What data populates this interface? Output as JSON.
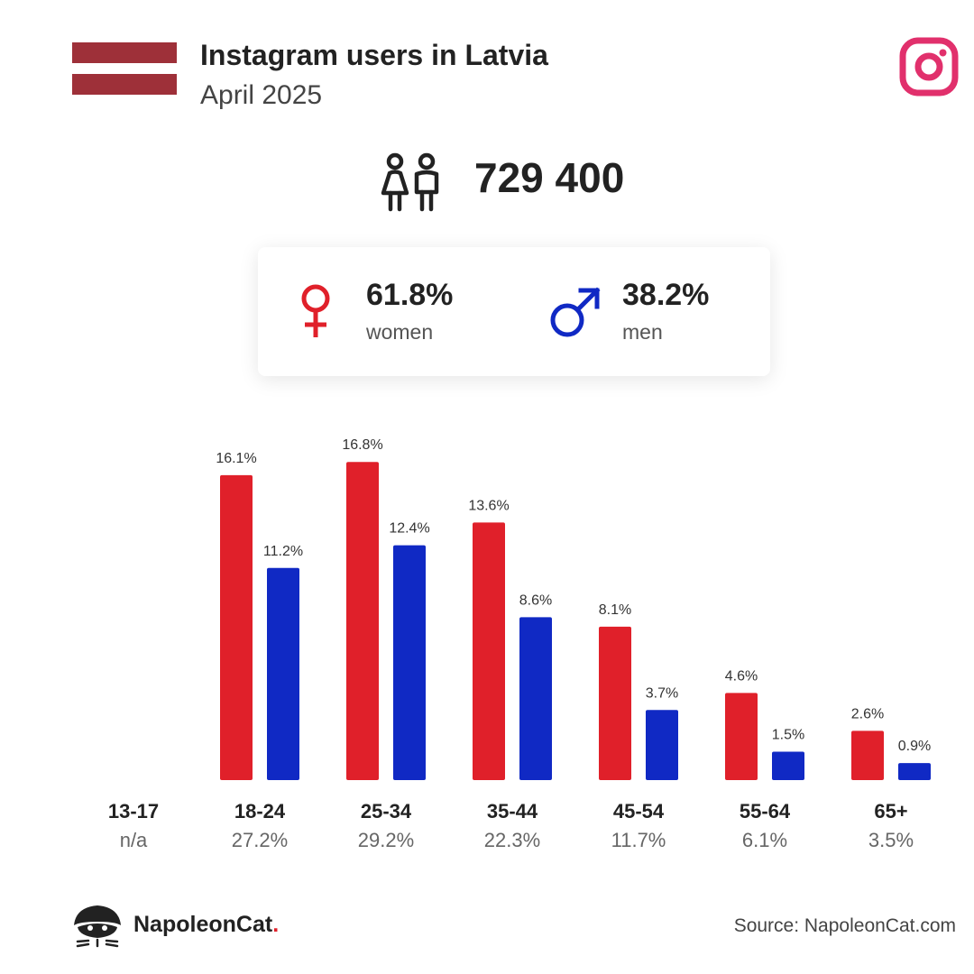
{
  "header": {
    "title": "Instagram users in Latvia",
    "subtitle": "April 2025",
    "flag_colors": {
      "top": "#9e3039",
      "middle": "#ffffff",
      "bottom": "#9e3039"
    },
    "platform_icon": "instagram-icon",
    "platform_color": "#e1306c"
  },
  "total": {
    "icon": "people-icon",
    "value": "729 400"
  },
  "gender": {
    "female": {
      "icon": "female-symbol-icon",
      "percent": "61.8%",
      "label": "women",
      "color": "#e0202a"
    },
    "male": {
      "icon": "male-symbol-icon",
      "percent": "38.2%",
      "label": "men",
      "color": "#1029c4"
    }
  },
  "chart_data": {
    "type": "bar",
    "categories": [
      "13-17",
      "18-24",
      "25-34",
      "35-44",
      "45-54",
      "55-64",
      "65+"
    ],
    "category_totals": [
      "n/a",
      "27.2%",
      "29.2%",
      "22.3%",
      "11.7%",
      "6.1%",
      "3.5%"
    ],
    "series": [
      {
        "name": "women",
        "color": "#e0202a",
        "values": [
          null,
          16.1,
          16.8,
          13.6,
          8.1,
          4.6,
          2.6
        ],
        "labels": [
          "",
          "16.1%",
          "16.8%",
          "13.6%",
          "8.1%",
          "4.6%",
          "2.6%"
        ]
      },
      {
        "name": "men",
        "color": "#1029c4",
        "values": [
          null,
          11.2,
          12.4,
          8.6,
          3.7,
          1.5,
          0.9
        ],
        "labels": [
          "",
          "11.2%",
          "12.4%",
          "8.6%",
          "3.7%",
          "1.5%",
          "0.9%"
        ]
      }
    ],
    "unit": "%",
    "grid": false,
    "legend": "none"
  },
  "footer": {
    "brand_icon": "napoleoncat-logo-icon",
    "brand_name": "NapoleonCat",
    "brand_dot": ".",
    "source": "Source: NapoleonCat.com"
  }
}
